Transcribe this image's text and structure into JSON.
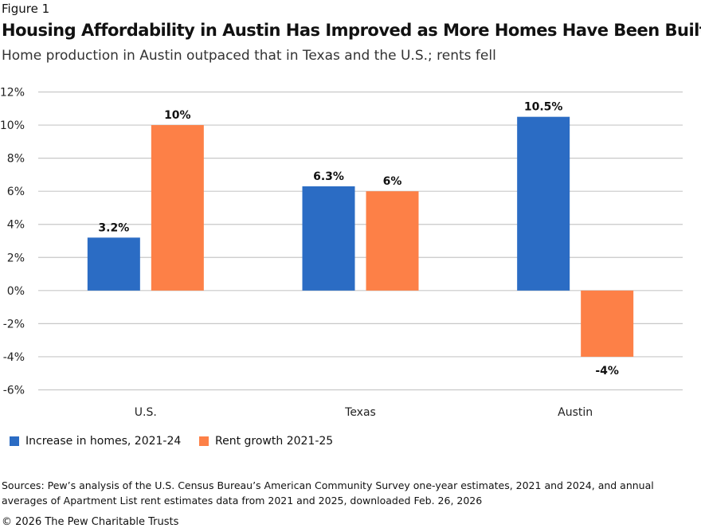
{
  "figure_label": "Figure 1",
  "title": "Housing Affordability in Austin Has Improved as More Homes Have Been Built",
  "subtitle": "Home production in Austin outpaced that in Texas and the U.S.; rents fell",
  "chart_data": {
    "type": "bar",
    "categories": [
      "U.S.",
      "Texas",
      "Austin"
    ],
    "series": [
      {
        "name": "Increase in homes, 2021-24",
        "values": [
          3.2,
          6.3,
          10.5
        ],
        "labels": [
          "3.2%",
          "6.3%",
          "10.5%"
        ],
        "color": "#2b6cc4"
      },
      {
        "name": "Rent growth 2021-25",
        "values": [
          10,
          6,
          -4
        ],
        "labels": [
          "10%",
          "6%",
          "-4%"
        ],
        "color": "#fd8047"
      }
    ],
    "ylim": [
      -6,
      12
    ],
    "yticks": [
      "12%",
      "10%",
      "8%",
      "6%",
      "4%",
      "2%",
      "0%",
      "-2%",
      "-4%",
      "-6%"
    ],
    "grid": true,
    "legend": "bottom-left"
  },
  "sources": "Sources: Pew’s analysis of the U.S. Census Bureau’s American Community Survey one-year estimates, 2021 and 2024, and annual averages of Apartment List rent estimates data from 2021 and 2025, downloaded Feb. 26, 2026",
  "copyright": "© 2026 The Pew Charitable Trusts"
}
